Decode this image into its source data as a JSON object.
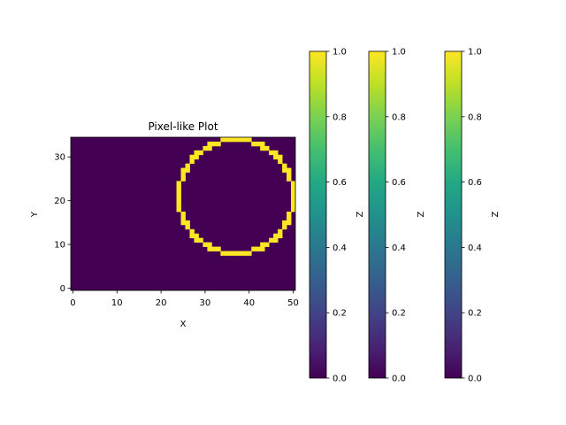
{
  "chart_data": {
    "type": "heatmap",
    "title": "Pixel-like Plot",
    "xlabel": "X",
    "ylabel": "Y",
    "grid_size": [
      51,
      35
    ],
    "xlim": [
      -0.5,
      50.5
    ],
    "ylim": [
      -0.5,
      34.5
    ],
    "x_ticks": [
      0,
      10,
      20,
      30,
      40,
      50
    ],
    "y_ticks": [
      0,
      10,
      20,
      30
    ],
    "colormap": "viridis",
    "color_low": "#440154",
    "color_high": "#fde725",
    "value_range": [
      0,
      1
    ],
    "circle_outline": {
      "center_x": 37,
      "center_y": 21,
      "radius": 13,
      "value": 1
    },
    "background_value": 0,
    "colorbars": [
      {
        "label": "",
        "range": [
          0.0,
          1.0
        ],
        "ticks": [
          "0.0",
          "0.2",
          "0.4",
          "0.6",
          "0.8",
          "1.0"
        ]
      },
      {
        "label": "Z",
        "range": [
          0.0,
          1.0
        ],
        "ticks": [
          "0.0",
          "0.2",
          "0.4",
          "0.6",
          "0.8",
          "1.0"
        ]
      },
      {
        "label": "Z",
        "range": [
          0.0,
          1.0
        ],
        "ticks": [
          "0.0",
          "0.2",
          "0.4",
          "0.6",
          "0.8",
          "1.0"
        ]
      }
    ],
    "colorbar_side_label": "Z",
    "grid": false
  }
}
